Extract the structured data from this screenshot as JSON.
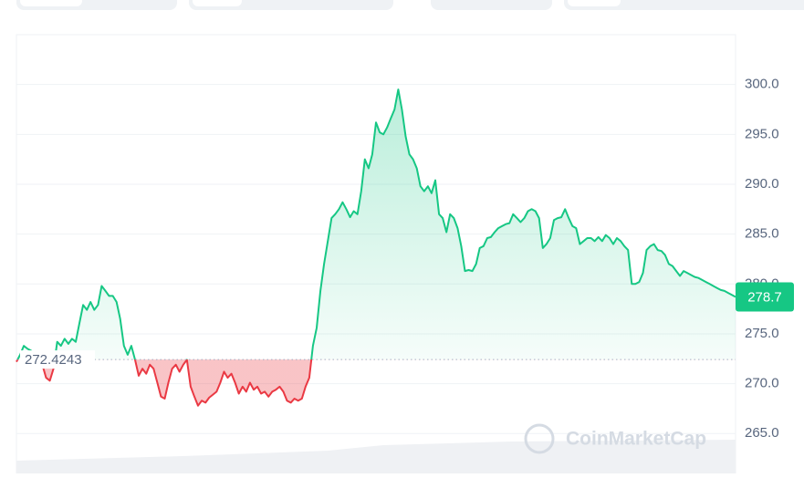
{
  "chart_data": {
    "type": "line",
    "values": [
      272.2,
      272.9,
      273.8,
      273.5,
      273.3,
      272.9,
      272.4,
      271.9,
      270.6,
      270.3,
      271.5,
      274.2,
      273.8,
      274.5,
      274.0,
      274.5,
      274.2,
      276.1,
      277.9,
      277.4,
      278.2,
      277.4,
      277.9,
      279.8,
      279.3,
      278.8,
      278.8,
      278.2,
      276.5,
      273.8,
      272.9,
      273.8,
      272.4,
      270.8,
      271.5,
      271.0,
      271.9,
      271.5,
      270.1,
      268.7,
      268.5,
      270.1,
      271.5,
      271.9,
      271.2,
      271.9,
      272.4,
      269.7,
      268.7,
      267.8,
      268.3,
      268.1,
      268.6,
      268.9,
      269.2,
      270.1,
      271.2,
      270.6,
      271.0,
      270.1,
      269.0,
      269.7,
      269.2,
      270.1,
      269.4,
      269.7,
      269.0,
      269.2,
      268.7,
      269.2,
      269.4,
      269.7,
      269.2,
      268.3,
      268.1,
      268.5,
      268.3,
      268.5,
      269.7,
      270.6,
      273.8,
      275.6,
      279.3,
      282.0,
      284.3,
      286.6,
      287.0,
      287.5,
      288.2,
      287.5,
      286.7,
      287.3,
      287.0,
      289.3,
      292.5,
      291.6,
      293.0,
      296.2,
      295.2,
      295.0,
      295.7,
      296.6,
      297.5,
      299.5,
      297.5,
      294.8,
      293.0,
      292.5,
      291.6,
      289.8,
      289.3,
      289.8,
      289.1,
      290.4,
      287.0,
      286.6,
      285.2,
      287.0,
      286.6,
      285.6,
      283.8,
      281.3,
      281.4,
      281.3,
      282.0,
      283.6,
      283.8,
      284.6,
      284.7,
      285.2,
      285.6,
      285.8,
      286.0,
      286.1,
      287.0,
      286.6,
      286.2,
      286.6,
      287.3,
      287.5,
      287.3,
      286.6,
      283.6,
      284.0,
      284.6,
      286.4,
      286.6,
      286.7,
      287.5,
      286.6,
      285.8,
      285.6,
      284.0,
      284.3,
      284.6,
      284.6,
      284.3,
      284.7,
      284.3,
      284.9,
      284.6,
      284.0,
      284.6,
      284.3,
      283.8,
      283.4,
      280.0,
      280.0,
      280.2,
      281.1,
      283.4,
      283.8,
      284.0,
      283.4,
      283.3,
      282.9,
      282.0,
      281.8,
      281.3,
      280.8,
      281.3,
      281.1,
      280.9,
      280.7,
      280.6,
      280.4,
      280.2,
      280.0,
      279.8,
      279.6,
      279.4,
      279.3,
      279.1,
      278.9,
      278.7
    ],
    "colors": {
      "up": "#16c784",
      "down": "#ea3943"
    },
    "baseline": 272.4243,
    "current_price": 278.7,
    "watermark": "CoinMarketCap",
    "ylim": [
      261,
      305
    ],
    "yticks": [
      {
        "value": 265,
        "label": "265.0"
      },
      {
        "value": 270,
        "label": "270.0"
      },
      {
        "value": 275,
        "label": "275.0"
      },
      {
        "value": 280,
        "label": "280.0"
      },
      {
        "value": 285,
        "label": "285.0"
      },
      {
        "value": 290,
        "label": "290.0"
      },
      {
        "value": 295,
        "label": "295.0"
      },
      {
        "value": 300,
        "label": "300.0"
      }
    ],
    "grid": true
  }
}
